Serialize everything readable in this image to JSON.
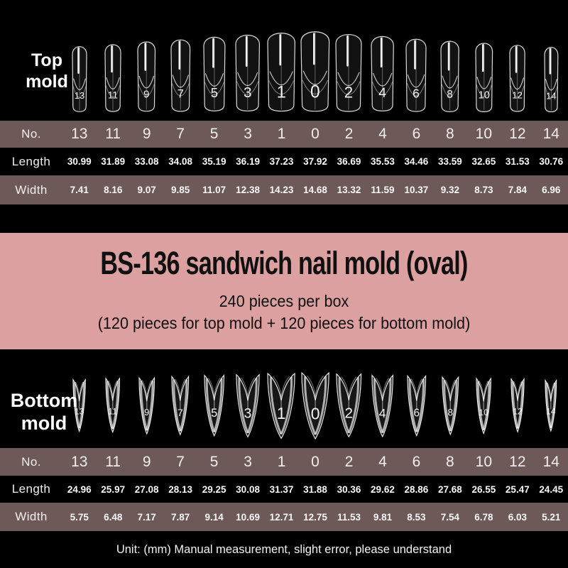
{
  "colors": {
    "background_black": "#000000",
    "row_mauve": "#6d5a58",
    "banner_pink": "#dda0a0",
    "text_light": "#ffffff",
    "title_text": "#101010"
  },
  "top_section": {
    "label": "Top mold"
  },
  "bottom_section": {
    "label": "Bottom mold"
  },
  "top_table": {
    "row_labels": [
      "No.",
      "Length",
      "Width"
    ],
    "numbers": [
      "13",
      "11",
      "9",
      "7",
      "5",
      "3",
      "1",
      "0",
      "2",
      "4",
      "6",
      "8",
      "10",
      "12",
      "14"
    ],
    "length_values": [
      "30.99",
      "31.89",
      "33.08",
      "34.08",
      "35.19",
      "36.19",
      "37.23",
      "37.92",
      "36.69",
      "35.53",
      "34.46",
      "33.59",
      "32.65",
      "31.53",
      "30.76"
    ],
    "width_values": [
      "7.41",
      "8.16",
      "9.07",
      "9.85",
      "11.07",
      "12.38",
      "14.23",
      "14.68",
      "13.32",
      "11.59",
      "10.37",
      "9.32",
      "8.73",
      "7.84",
      "6.96"
    ]
  },
  "banner": {
    "title": "BS-136 sandwich nail mold (oval)",
    "line1": "240 pieces per box",
    "line2": "(120 pieces for top mold + 120 pieces for bottom mold)"
  },
  "bottom_table": {
    "row_labels": [
      "No.",
      "Length",
      "Width"
    ],
    "numbers": [
      "13",
      "11",
      "9",
      "7",
      "5",
      "3",
      "1",
      "0",
      "2",
      "4",
      "6",
      "8",
      "10",
      "12",
      "14"
    ],
    "length_values": [
      "24.96",
      "25.97",
      "27.08",
      "28.13",
      "29.25",
      "30.08",
      "31.37",
      "31.88",
      "30.36",
      "29.62",
      "28.86",
      "27.68",
      "26.55",
      "25.47",
      "24.45"
    ],
    "width_values": [
      "5.75",
      "6.48",
      "7.17",
      "7.87",
      "9.14",
      "10.69",
      "12.71",
      "12.75",
      "11.53",
      "9.81",
      "8.53",
      "7.54",
      "6.78",
      "6.03",
      "5.21"
    ]
  },
  "footer": {
    "note": "Unit: (mm) Manual measurement, slight error, please understand"
  }
}
